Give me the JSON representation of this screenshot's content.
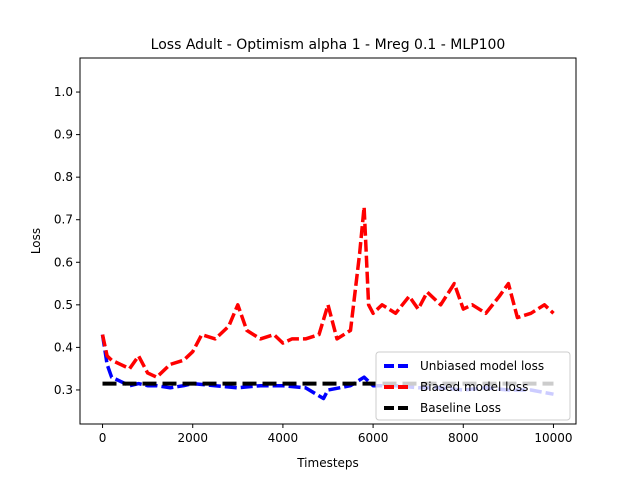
{
  "chart_data": {
    "type": "line",
    "title": "Loss Adult - Optimism alpha 1 - Mreg 0.1 - MLP100",
    "xlabel": "Timesteps",
    "ylabel": "Loss",
    "xlim": [
      -500,
      10500
    ],
    "ylim": [
      0.22,
      1.08
    ],
    "xticks": [
      0,
      2000,
      4000,
      6000,
      8000,
      10000
    ],
    "yticks": [
      0.3,
      0.4,
      0.5,
      0.6,
      0.7,
      0.8,
      0.9,
      1.0
    ],
    "grid": false,
    "legend_position": "bottom-right",
    "series": [
      {
        "name": "Unbiased model loss",
        "color": "#0000ff",
        "style": "dashed",
        "x": [
          0,
          100,
          200,
          400,
          600,
          800,
          1000,
          1200,
          1500,
          1800,
          2000,
          2500,
          3000,
          3500,
          4000,
          4500,
          4900,
          5000,
          5500,
          5800,
          6000,
          6500,
          7000,
          7500,
          8000,
          8500,
          9000,
          9500,
          10000
        ],
        "y": [
          0.43,
          0.36,
          0.33,
          0.32,
          0.31,
          0.315,
          0.31,
          0.31,
          0.305,
          0.31,
          0.315,
          0.31,
          0.305,
          0.31,
          0.31,
          0.305,
          0.28,
          0.3,
          0.31,
          0.33,
          0.31,
          0.31,
          0.305,
          0.305,
          0.3,
          0.305,
          0.3,
          0.3,
          0.29
        ]
      },
      {
        "name": "Biased model loss",
        "color": "#ff0000",
        "style": "dashed",
        "x": [
          0,
          100,
          200,
          400,
          600,
          800,
          1000,
          1200,
          1500,
          1800,
          2000,
          2200,
          2500,
          2800,
          3000,
          3200,
          3500,
          3800,
          4000,
          4200,
          4500,
          4800,
          5000,
          5200,
          5500,
          5700,
          5800,
          5900,
          6000,
          6200,
          6500,
          6800,
          7000,
          7200,
          7500,
          7800,
          8000,
          8200,
          8500,
          8800,
          9000,
          9200,
          9500,
          9800,
          10000
        ],
        "y": [
          0.43,
          0.38,
          0.37,
          0.36,
          0.35,
          0.38,
          0.34,
          0.33,
          0.36,
          0.37,
          0.39,
          0.43,
          0.42,
          0.45,
          0.5,
          0.44,
          0.42,
          0.43,
          0.41,
          0.42,
          0.42,
          0.43,
          0.5,
          0.42,
          0.44,
          0.62,
          0.73,
          0.5,
          0.48,
          0.5,
          0.48,
          0.52,
          0.49,
          0.53,
          0.5,
          0.55,
          0.49,
          0.5,
          0.48,
          0.52,
          0.55,
          0.47,
          0.48,
          0.5,
          0.48
        ]
      },
      {
        "name": "Baseline Loss",
        "color": "#000000",
        "style": "dashed",
        "x": [
          0,
          10000
        ],
        "y": [
          0.315,
          0.315
        ]
      }
    ]
  }
}
